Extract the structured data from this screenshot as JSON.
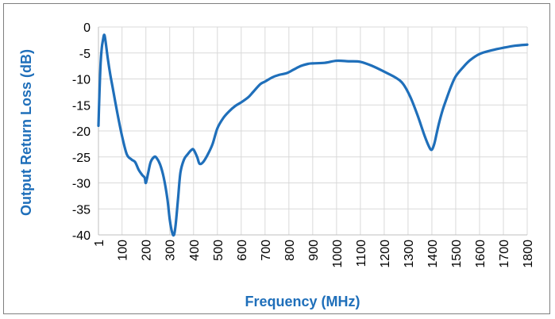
{
  "chart_data": {
    "type": "line",
    "xlabel": "Frequency (MHz)",
    "ylabel": "Output Return Loss (dB)",
    "xlim": [
      1,
      1800
    ],
    "ylim": [
      -40,
      0
    ],
    "x_ticks": [
      1,
      100,
      200,
      300,
      400,
      500,
      600,
      700,
      800,
      900,
      1000,
      1100,
      1200,
      1300,
      1400,
      1500,
      1600,
      1700,
      1800
    ],
    "y_ticks": [
      0,
      -5,
      -10,
      -15,
      -20,
      -25,
      -30,
      -35,
      -40
    ],
    "x_tick_labels": [
      "1",
      "100",
      "200",
      "300",
      "400",
      "500",
      "600",
      "700",
      "800",
      "900",
      "1000",
      "1100",
      "1200",
      "1300",
      "1400",
      "1500",
      "1600",
      "1700",
      "1800"
    ],
    "y_tick_labels": [
      "0",
      "-5",
      "-10",
      "-15",
      "-20",
      "-25",
      "-30",
      "-35",
      "-40"
    ],
    "grid": true,
    "line_color": "#1f6fba",
    "axis_title_color": "#1f6fba",
    "series": [
      {
        "x": [
          1,
          5,
          10,
          15,
          20,
          25,
          30,
          40,
          50,
          60,
          80,
          100,
          120,
          140,
          155,
          170,
          185,
          195,
          200,
          210,
          220,
          235,
          245,
          260,
          275,
          290,
          300,
          310,
          318,
          325,
          335,
          345,
          360,
          375,
          390,
          400,
          415,
          425,
          440,
          460,
          480,
          500,
          525,
          550,
          575,
          600,
          630,
          650,
          680,
          700,
          730,
          760,
          790,
          820,
          850,
          880,
          900,
          950,
          1000,
          1050,
          1100,
          1150,
          1200,
          1250,
          1280,
          1310,
          1340,
          1370,
          1390,
          1400,
          1410,
          1420,
          1430,
          1445,
          1460,
          1480,
          1500,
          1530,
          1560,
          1600,
          1650,
          1700,
          1750,
          1800
        ],
        "values": [
          -19,
          -13,
          -7,
          -4,
          -2.5,
          -1.5,
          -2.5,
          -6,
          -9,
          -11.5,
          -16.5,
          -21,
          -24.5,
          -25.5,
          -26,
          -27.5,
          -28.5,
          -29,
          -30,
          -28,
          -26,
          -25,
          -25.2,
          -26.5,
          -29,
          -33,
          -37,
          -39.5,
          -40,
          -38,
          -33,
          -28,
          -25.5,
          -24.5,
          -23.7,
          -23.6,
          -25,
          -26.3,
          -26,
          -24.5,
          -22.5,
          -19.5,
          -17.5,
          -16.2,
          -15.2,
          -14.5,
          -13.5,
          -12.5,
          -11,
          -10.5,
          -9.7,
          -9.2,
          -8.9,
          -8.2,
          -7.5,
          -7.1,
          -7,
          -6.9,
          -6.5,
          -6.6,
          -6.7,
          -7.5,
          -8.6,
          -9.8,
          -11,
          -13.5,
          -17,
          -21,
          -23.2,
          -23.6,
          -22.5,
          -20.5,
          -18.5,
          -16,
          -14,
          -11.5,
          -9.5,
          -7.8,
          -6.4,
          -5.2,
          -4.5,
          -4,
          -3.6,
          -3.4
        ]
      }
    ]
  }
}
